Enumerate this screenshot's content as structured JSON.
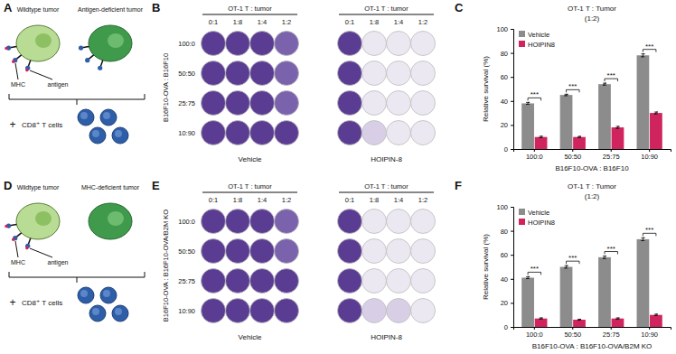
{
  "chart_data": [
    {
      "type": "bar",
      "label": "C",
      "title": "OT-1 T : Tumor",
      "subtitle": "(1:2)",
      "x_label": "B16F10-OVA : B16F10",
      "y_label": "Relative survival (%)",
      "categories": [
        "100:0",
        "50:50",
        "25:75",
        "10:90"
      ],
      "series": [
        {
          "name": "Vehicle",
          "color": "#8c8c8c",
          "values": [
            38,
            45,
            54,
            78
          ],
          "errors": [
            0.8,
            0.6,
            0.8,
            1.2
          ]
        },
        {
          "name": "HOIPIN8",
          "color": "#d0245e",
          "values": [
            10,
            10,
            18,
            30
          ],
          "errors": [
            0.6,
            0.5,
            0.8,
            0.8
          ]
        }
      ],
      "significance": [
        "***",
        "***",
        "***",
        "***"
      ],
      "ylim": [
        0,
        100
      ],
      "yticks": [
        0,
        20,
        40,
        60,
        80,
        100
      ],
      "legend": "upper left"
    },
    {
      "type": "bar",
      "label": "F",
      "title": "OT-1 T : Tumor",
      "subtitle": "(1:2)",
      "x_label": "B16F10-OVA : B16F10-OVA/B2M KO",
      "y_label": "Relative survival (%)",
      "categories": [
        "100:0",
        "50:50",
        "25:75",
        "10:90"
      ],
      "series": [
        {
          "name": "Vehicle",
          "color": "#8c8c8c",
          "values": [
            41,
            50,
            58,
            73
          ],
          "errors": [
            0.8,
            1.0,
            1.0,
            1.2
          ]
        },
        {
          "name": "HOIPIN8",
          "color": "#d0245e",
          "values": [
            7,
            6,
            7,
            10
          ],
          "errors": [
            0.5,
            0.4,
            0.5,
            0.6
          ]
        }
      ],
      "significance": [
        "***",
        "***",
        "***",
        "***"
      ],
      "ylim": [
        0,
        100
      ],
      "yticks": [
        0,
        20,
        40,
        60,
        80,
        100
      ],
      "legend": "upper left"
    }
  ],
  "diagrams": [
    {
      "label": "A",
      "left_cell": "Wildtype tumor",
      "right_cell": "Antigen-deficient tumor",
      "mhc": "MHC",
      "antigen": "antigen",
      "plus": "+",
      "t_cells": "CD8⁺ T cells"
    },
    {
      "label": "D",
      "left_cell": "Wildtype tumor",
      "right_cell": "MHC-deficient tumor",
      "mhc": "MHC",
      "antigen": "antigen",
      "plus": "+",
      "t_cells": "CD8⁺ T cells"
    }
  ],
  "plates": [
    {
      "label": "B",
      "header": "OT-1 T : tumor",
      "columns": [
        "0:1",
        "1:8",
        "1:4",
        "1:2"
      ],
      "rows": [
        "100:0",
        "50:50",
        "25:75",
        "10:90"
      ],
      "row_title": "B16F10-OVA : B16F10",
      "treatments": [
        {
          "name": "Vehicle",
          "well_colors": [
            [
              "#5b3c93",
              "#5b3c93",
              "#5b3c93",
              "#7a62ad"
            ],
            [
              "#5b3c93",
              "#5b3c93",
              "#5b3c93",
              "#7a62ad"
            ],
            [
              "#5b3c93",
              "#5b3c93",
              "#5b3c93",
              "#7a62ad"
            ],
            [
              "#5b3c93",
              "#5b3c93",
              "#5b3c93",
              "#5b3c93"
            ]
          ]
        },
        {
          "name": "HOIPIN-8",
          "well_colors": [
            [
              "#5b3c93",
              "#ece8f2",
              "#ece8f2",
              "#ece8f2"
            ],
            [
              "#5b3c93",
              "#ece8f2",
              "#ece8f2",
              "#ece8f2"
            ],
            [
              "#5b3c93",
              "#ece8f2",
              "#ece8f2",
              "#ece8f2"
            ],
            [
              "#5b3c93",
              "#d8cfe6",
              "#ece8f2",
              "#ece8f2"
            ]
          ]
        }
      ]
    },
    {
      "label": "E",
      "header": "OT-1 T : tumor",
      "columns": [
        "0:1",
        "1:8",
        "1:4",
        "1:2"
      ],
      "rows": [
        "100:0",
        "50:50",
        "25:75",
        "10:90"
      ],
      "row_title": "B16F10-OVA : B16F10-OVA/B2M KO",
      "treatments": [
        {
          "name": "Vehicle",
          "well_colors": [
            [
              "#5b3c93",
              "#5b3c93",
              "#5b3c93",
              "#7a62ad"
            ],
            [
              "#5b3c93",
              "#5b3c93",
              "#5b3c93",
              "#7a62ad"
            ],
            [
              "#5b3c93",
              "#5b3c93",
              "#5b3c93",
              "#5b3c93"
            ],
            [
              "#5b3c93",
              "#5b3c93",
              "#5b3c93",
              "#5b3c93"
            ]
          ]
        },
        {
          "name": "HOIPIN-8",
          "well_colors": [
            [
              "#5b3c93",
              "#ece8f2",
              "#ece8f2",
              "#ece8f2"
            ],
            [
              "#5b3c93",
              "#ece8f2",
              "#ece8f2",
              "#ece8f2"
            ],
            [
              "#5b3c93",
              "#ece8f2",
              "#ece8f2",
              "#ece8f2"
            ],
            [
              "#5b3c93",
              "#d8cfe6",
              "#d8cfe6",
              "#ece8f2"
            ]
          ]
        }
      ]
    }
  ]
}
